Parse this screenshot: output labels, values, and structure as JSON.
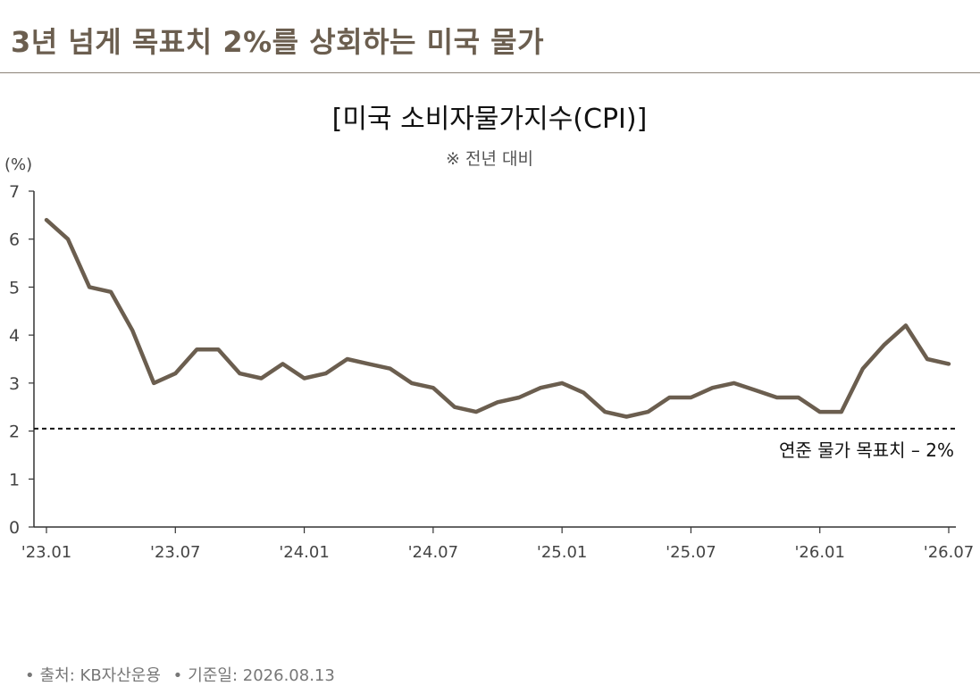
{
  "header": {
    "title": "3년 넘게 목표치 2%를 상회하는 미국 물가"
  },
  "chart_data": {
    "type": "line",
    "title": "[미국 소비자물가지수(CPI)]",
    "subtitle": "※ 전년 대비",
    "ylabel": "(%)",
    "ylim": [
      0,
      7
    ],
    "yticks": [
      0,
      1,
      2,
      3,
      4,
      5,
      6,
      7
    ],
    "xtick_labels": [
      "'23.01",
      "'23.07",
      "'24.01",
      "'24.07",
      "'25.01",
      "'25.07",
      "'26.01",
      "'26.07"
    ],
    "x": [
      "'23.01",
      "'23.02",
      "'23.03",
      "'23.04",
      "'23.05",
      "'23.06",
      "'23.07",
      "'23.08",
      "'23.09",
      "'23.10",
      "'23.11",
      "'23.12",
      "'24.01",
      "'24.02",
      "'24.03",
      "'24.04",
      "'24.05",
      "'24.06",
      "'24.07",
      "'24.08",
      "'24.09",
      "'24.10",
      "'24.11",
      "'24.12",
      "'25.01",
      "'25.02",
      "'25.03",
      "'25.04",
      "'25.05",
      "'25.06",
      "'25.07",
      "'25.08",
      "'25.09",
      "'25.10",
      "'25.11",
      "'25.12",
      "'26.01",
      "'26.02",
      "'26.03",
      "'26.04",
      "'26.05",
      "'26.06",
      "'26.07"
    ],
    "series": [
      {
        "values": [
          6.4,
          6.0,
          5.0,
          4.9,
          4.1,
          3.0,
          3.2,
          3.7,
          3.7,
          3.2,
          3.1,
          3.4,
          3.1,
          3.2,
          3.5,
          3.4,
          3.3,
          3.0,
          2.9,
          2.5,
          2.4,
          2.6,
          2.7,
          2.9,
          3.0,
          2.8,
          2.4,
          2.3,
          2.4,
          2.7,
          2.7,
          2.9,
          3.0,
          2.85,
          2.7,
          2.7,
          2.4,
          2.4,
          3.3,
          3.8,
          4.2,
          3.5,
          3.4
        ],
        "color": "#6b5e4f"
      }
    ],
    "reference_line": {
      "value": 2.05,
      "label": "연준 물가 목표치 – 2%",
      "style": "dashed",
      "color": "#111111"
    },
    "grid": false
  },
  "footer": {
    "bullet": "•",
    "source": "출처: KB자산운용",
    "date": "기준일: 2026.08.13"
  }
}
